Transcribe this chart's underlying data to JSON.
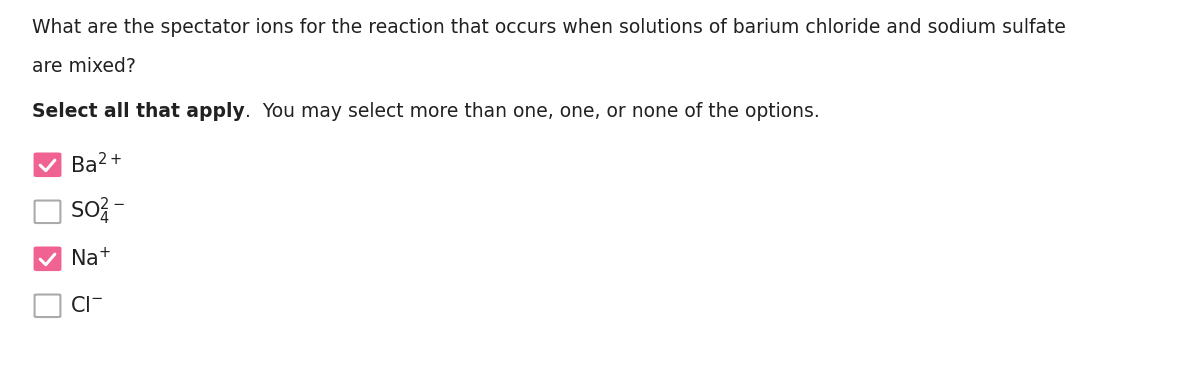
{
  "background_color": "#ffffff",
  "question_line1": "What are the spectator ions for the reaction that occurs when solutions of barium chloride and sodium sulfate",
  "question_line2": "are mixed?",
  "instruction_bold": "Select all that apply",
  "instruction_normal": ".  You may select more than one, one, or none of the options.",
  "checkbox_color_checked": "#f06292",
  "checkbox_color_unchecked": "#aaaaaa",
  "checkbox_fill_checked": "#f06292",
  "checkbox_fill_unchecked": "#ffffff",
  "text_color": "#212121",
  "font_size_question": 13.5,
  "font_size_instruction": 13.5,
  "font_size_option": 15,
  "checkmark_color": "#ffffff",
  "options": [
    {
      "label": "Ba$^{2+}$",
      "checked": true
    },
    {
      "label": "SO$_4^{2-}$",
      "checked": false
    },
    {
      "label": "Na$^{+}$",
      "checked": true
    },
    {
      "label": "Cl$^{-}$",
      "checked": false
    }
  ]
}
